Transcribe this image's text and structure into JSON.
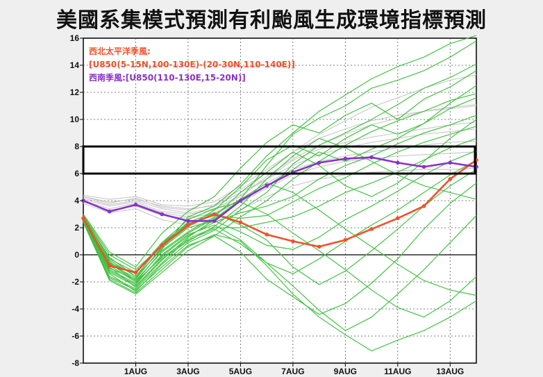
{
  "title": "美國系集模式預測有利颱風生成環境指標預測",
  "colors": {
    "background": "#efeff0",
    "plot_background": "#ffffff",
    "wnp_monsoon": "#f0502a",
    "sw_monsoon": "#8a32c8",
    "ensemble_members": "#43c143",
    "ensemble_gray": "#c8c8c8",
    "favorable_box": "#000000"
  },
  "chart_data": {
    "type": "line",
    "title": "",
    "xlabel": "",
    "ylabel": "",
    "ylim": [
      -8,
      16
    ],
    "xlim": [
      -1,
      14
    ],
    "yticks": [
      -8,
      -6,
      -4,
      -2,
      0,
      2,
      4,
      6,
      8,
      10,
      12,
      14,
      16
    ],
    "xticks": [
      {
        "x": 1,
        "label": "1AUG"
      },
      {
        "x": 3,
        "label": "3AUG"
      },
      {
        "x": 5,
        "label": "5AUG"
      },
      {
        "x": 7,
        "label": "7AUG"
      },
      {
        "x": 9,
        "label": "9AUG"
      },
      {
        "x": 11,
        "label": "11AUG"
      },
      {
        "x": 13,
        "label": "13AUG"
      }
    ],
    "grid": true,
    "favorable_range": [
      6,
      8
    ],
    "x": [
      -1,
      0,
      1,
      2,
      3,
      4,
      5,
      6,
      7,
      8,
      9,
      10,
      11,
      12,
      13,
      14
    ],
    "series": [
      {
        "name": "西北太平洋季風:",
        "legend_detail": "[U850(5-15N,100-130E)-(20-30N,110-140E)]",
        "color": "#f0502a",
        "values": [
          2.7,
          -0.8,
          -1.3,
          0.7,
          2.2,
          3.0,
          2.4,
          1.5,
          1.0,
          0.6,
          1.1,
          1.9,
          2.7,
          3.6,
          5.6,
          7.0
        ]
      },
      {
        "name": "西南季風:[U850(110-130E,15-20N)]",
        "color": "#8a32c8",
        "values": [
          4.0,
          3.2,
          3.7,
          3.0,
          2.5,
          2.5,
          4.0,
          5.1,
          6.1,
          6.8,
          7.1,
          7.2,
          6.8,
          6.5,
          6.8,
          6.5
        ]
      }
    ],
    "ensemble_members_green": [
      [
        2.8,
        -0.2,
        -1.6,
        0.4,
        2.8,
        3.6,
        5.2,
        7.3,
        9.0,
        10.6,
        11.8,
        13.0,
        13.9,
        14.6,
        15.6,
        16.2
      ],
      [
        2.6,
        -0.9,
        -2.4,
        -0.4,
        1.3,
        2.6,
        4.1,
        6.6,
        8.9,
        10.1,
        11.0,
        12.3,
        12.9,
        13.6,
        14.6,
        15.8
      ],
      [
        3.0,
        0.2,
        -0.9,
        1.6,
        3.2,
        4.3,
        6.4,
        8.3,
        9.6,
        9.0,
        10.3,
        11.2,
        10.0,
        11.5,
        12.4,
        13.6
      ],
      [
        2.5,
        -1.4,
        -2.7,
        -0.7,
        0.9,
        1.8,
        3.3,
        4.6,
        6.7,
        8.1,
        9.0,
        10.0,
        11.1,
        12.3,
        13.1,
        14.1
      ],
      [
        2.9,
        0.0,
        -1.1,
        0.7,
        2.1,
        3.3,
        5.0,
        7.0,
        8.1,
        7.3,
        8.6,
        9.6,
        8.9,
        9.7,
        11.2,
        12.5
      ],
      [
        2.4,
        -1.9,
        -2.9,
        -1.3,
        0.3,
        1.4,
        2.8,
        4.0,
        5.6,
        6.9,
        8.1,
        9.1,
        9.9,
        10.6,
        11.4,
        11.9
      ],
      [
        2.7,
        -0.5,
        -1.9,
        0.2,
        1.6,
        2.7,
        4.0,
        5.1,
        6.3,
        7.6,
        6.9,
        7.8,
        8.6,
        9.7,
        10.8,
        11.6
      ],
      [
        2.6,
        -1.1,
        -2.1,
        -0.1,
        1.4,
        2.4,
        3.1,
        3.6,
        4.3,
        5.6,
        6.6,
        7.3,
        8.2,
        9.0,
        9.6,
        10.3
      ],
      [
        2.8,
        -0.6,
        -1.4,
        0.9,
        2.3,
        2.9,
        2.7,
        2.9,
        3.9,
        4.9,
        5.7,
        6.7,
        7.6,
        8.3,
        8.9,
        9.5
      ],
      [
        2.5,
        -1.6,
        -2.5,
        -0.6,
        1.2,
        2.0,
        2.0,
        2.4,
        2.8,
        3.6,
        4.6,
        5.3,
        6.1,
        7.0,
        7.9,
        8.6
      ],
      [
        2.7,
        -0.7,
        -1.7,
        0.5,
        2.0,
        2.5,
        1.7,
        0.7,
        0.4,
        1.3,
        2.6,
        3.6,
        4.7,
        5.9,
        6.9,
        7.7
      ],
      [
        2.6,
        -1.2,
        -2.2,
        0.0,
        1.5,
        2.2,
        1.1,
        -0.6,
        -1.4,
        -0.3,
        1.0,
        2.2,
        3.3,
        4.6,
        5.9,
        7.0
      ],
      [
        2.9,
        -0.4,
        -1.6,
        0.8,
        2.4,
        3.1,
        2.2,
        1.1,
        -0.9,
        -2.2,
        -1.2,
        0.3,
        1.9,
        3.6,
        5.1,
        6.3
      ],
      [
        2.5,
        -1.7,
        -2.6,
        -0.9,
        0.7,
        1.4,
        0.2,
        -1.8,
        -3.1,
        -4.4,
        -3.6,
        -2.1,
        -0.3,
        1.9,
        3.8,
        5.3
      ],
      [
        2.7,
        -0.8,
        -2.0,
        -0.2,
        1.1,
        1.9,
        0.8,
        -0.6,
        -2.3,
        -4.1,
        -5.6,
        -4.6,
        -2.9,
        -1.1,
        0.9,
        2.9
      ],
      [
        2.8,
        -0.3,
        -1.3,
        0.9,
        2.6,
        3.4,
        3.9,
        3.0,
        1.6,
        0.3,
        -1.1,
        -2.6,
        -3.9,
        -4.6,
        -3.4,
        -1.6
      ],
      [
        2.4,
        -1.8,
        -2.8,
        -1.1,
        0.6,
        1.5,
        1.0,
        -0.8,
        -2.9,
        -4.6,
        -5.9,
        -7.1,
        -6.3,
        -5.6,
        -4.6,
        -3.4
      ],
      [
        2.6,
        -1.0,
        -1.8,
        0.6,
        2.1,
        3.0,
        4.1,
        5.3,
        4.6,
        3.3,
        1.9,
        0.6,
        -0.7,
        -1.9,
        -2.6,
        -3.0
      ],
      [
        2.7,
        -0.6,
        -2.0,
        0.3,
        1.7,
        2.8,
        4.6,
        6.1,
        7.6,
        6.6,
        5.1,
        4.3,
        5.3,
        6.9,
        8.6,
        10.0
      ],
      [
        2.5,
        -1.3,
        -2.3,
        -0.3,
        1.0,
        2.1,
        3.6,
        5.6,
        7.3,
        8.6,
        7.9,
        6.9,
        5.9,
        5.1,
        4.6,
        4.1
      ]
    ],
    "ensemble_members_gray": [
      [
        4.3,
        3.9,
        4.1,
        3.6,
        3.4,
        3.6,
        4.6,
        5.6,
        6.6,
        7.4,
        7.9,
        8.3,
        8.6,
        8.9,
        9.1,
        9.3
      ],
      [
        4.1,
        3.6,
        3.9,
        3.2,
        3.0,
        3.3,
        4.3,
        5.8,
        7.1,
        8.1,
        8.9,
        9.6,
        10.1,
        10.6,
        10.9,
        11.1
      ],
      [
        3.9,
        3.3,
        3.6,
        2.9,
        2.7,
        3.1,
        4.1,
        5.3,
        6.3,
        6.9,
        7.3,
        7.6,
        7.9,
        8.1,
        8.3,
        8.4
      ],
      [
        4.4,
        4.1,
        4.3,
        3.7,
        3.6,
        3.9,
        5.1,
        6.3,
        7.6,
        8.6,
        9.3,
        9.9,
        10.3,
        10.6,
        10.8,
        11.0
      ],
      [
        3.8,
        3.1,
        3.4,
        2.6,
        2.2,
        2.4,
        3.3,
        4.3,
        5.1,
        5.6,
        5.9,
        6.1,
        6.2,
        6.3,
        6.3,
        6.4
      ],
      [
        4.2,
        3.7,
        4.0,
        3.4,
        3.1,
        3.4,
        4.4,
        5.6,
        7.0,
        7.8,
        8.3,
        8.7,
        9.0,
        9.3,
        9.6,
        9.8
      ],
      [
        4.0,
        3.4,
        3.8,
        3.1,
        2.8,
        3.0,
        3.9,
        4.9,
        5.9,
        6.5,
        6.9,
        7.1,
        7.3,
        7.4,
        7.5,
        7.6
      ],
      [
        4.3,
        3.8,
        4.2,
        3.5,
        3.3,
        3.7,
        4.8,
        6.1,
        7.6,
        8.9,
        9.9,
        10.9,
        11.6,
        12.3,
        12.9,
        13.3
      ]
    ]
  }
}
